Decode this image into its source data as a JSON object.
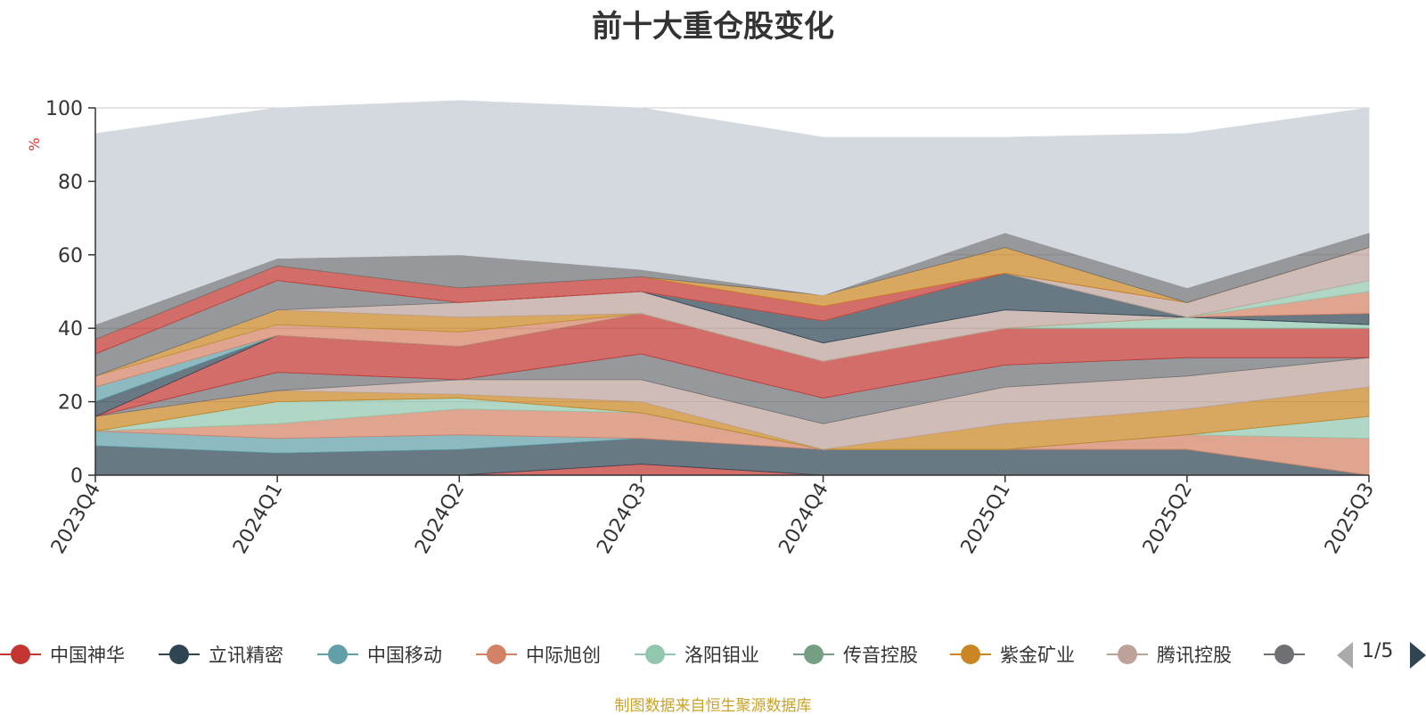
{
  "chart_data": {
    "type": "area",
    "stacked": true,
    "title": "前十大重仓股变化",
    "ylabel": "%",
    "ylim": [
      0,
      100
    ],
    "yticks": [
      0,
      20,
      40,
      60,
      80,
      100
    ],
    "grid": true,
    "categories": [
      "2023Q4",
      "2024Q1",
      "2024Q2",
      "2024Q3",
      "2024Q4",
      "2025Q1",
      "2025Q2",
      "2025Q3"
    ],
    "series": [
      {
        "name": "中国神华",
        "color": "#c23531",
        "values": [
          0,
          0,
          0,
          3,
          0,
          0,
          0,
          0
        ]
      },
      {
        "name": "立讯精密",
        "color": "#2f4554",
        "values": [
          8,
          6,
          7,
          7,
          7,
          7,
          7,
          0
        ]
      },
      {
        "name": "中国移动",
        "color": "#61a0a8",
        "values": [
          4,
          4,
          4,
          0,
          0,
          0,
          0,
          0
        ]
      },
      {
        "name": "中际旭创",
        "color": "#d48265",
        "values": [
          0,
          4,
          7,
          7,
          0,
          0,
          4,
          10
        ]
      },
      {
        "name": "洛阳钼业",
        "color": "#91c7ae",
        "values": [
          0,
          6,
          3,
          0,
          0,
          0,
          0,
          6
        ]
      },
      {
        "name": "传音控股",
        "color": "#749f83",
        "values": [
          0,
          0,
          0,
          0,
          0,
          0,
          0,
          0
        ]
      },
      {
        "name": "紫金矿业",
        "color": "#ca8622",
        "values": [
          4,
          3,
          1,
          3,
          0,
          7,
          7,
          8
        ]
      },
      {
        "name": "腾讯控股",
        "color": "#bda29a",
        "values": [
          0,
          0,
          4,
          6,
          7,
          10,
          9,
          8
        ]
      },
      {
        "name": "",
        "color": "#6e7074",
        "values": [
          0,
          5,
          0,
          7,
          7,
          6,
          5,
          0
        ]
      },
      {
        "name": "",
        "color": "#c23531",
        "values": [
          0,
          10,
          9,
          11,
          10,
          10,
          8,
          8
        ]
      },
      {
        "name": "",
        "color": "#2f4554",
        "values": [
          4,
          0,
          0,
          0,
          0,
          0,
          0,
          0
        ]
      },
      {
        "name": "",
        "color": "#61a0a8",
        "values": [
          4,
          0,
          0,
          0,
          0,
          0,
          0,
          0
        ]
      },
      {
        "name": "",
        "color": "#d48265",
        "values": [
          3,
          3,
          4,
          0,
          0,
          0,
          0,
          0
        ]
      },
      {
        "name": "",
        "color": "#91c7ae",
        "values": [
          0,
          0,
          0,
          0,
          0,
          0,
          3,
          1
        ]
      },
      {
        "name": "",
        "color": "#ca8622",
        "values": [
          0,
          4,
          4,
          0,
          0,
          0,
          0,
          0
        ]
      },
      {
        "name": "",
        "color": "#bda29a",
        "values": [
          0,
          0,
          4,
          6,
          5,
          5,
          0,
          0
        ]
      },
      {
        "name": "",
        "color": "#6e7074",
        "values": [
          6,
          8,
          0,
          0,
          0,
          0,
          0,
          0
        ]
      },
      {
        "name": "",
        "color": "#2f4554",
        "values": [
          0,
          0,
          0,
          0,
          6,
          10,
          0,
          3
        ]
      },
      {
        "name": "",
        "color": "#d48265",
        "values": [
          0,
          0,
          0,
          0,
          0,
          0,
          0,
          6
        ]
      },
      {
        "name": "",
        "color": "#91c7ae",
        "values": [
          0,
          0,
          0,
          0,
          0,
          0,
          0,
          3
        ]
      },
      {
        "name": "",
        "color": "#bda29a",
        "values": [
          0,
          0,
          0,
          0,
          0,
          0,
          4,
          9
        ]
      },
      {
        "name": "",
        "color": "#c23531",
        "values": [
          4,
          4,
          4,
          4,
          4,
          0,
          0,
          0
        ]
      },
      {
        "name": "",
        "color": "#ca8622",
        "values": [
          0,
          0,
          0,
          0,
          3,
          7,
          0,
          0
        ]
      },
      {
        "name": "",
        "color": "#6e7074",
        "values": [
          4,
          2,
          9,
          2,
          0,
          4,
          4,
          4
        ]
      },
      {
        "name": "",
        "color": "#d4d9e0",
        "values": [
          52,
          41,
          42,
          44,
          43,
          26,
          42,
          34
        ]
      }
    ]
  },
  "legend": {
    "items": [
      {
        "label": "中国神华",
        "color": "#c23531"
      },
      {
        "label": "立讯精密",
        "color": "#2f4554"
      },
      {
        "label": "中国移动",
        "color": "#61a0a8"
      },
      {
        "label": "中际旭创",
        "color": "#d48265"
      },
      {
        "label": "洛阳钼业",
        "color": "#91c7ae"
      },
      {
        "label": "传音控股",
        "color": "#749f83"
      },
      {
        "label": "紫金矿业",
        "color": "#ca8622"
      },
      {
        "label": "腾讯控股",
        "color": "#bda29a"
      },
      {
        "label": "",
        "color": "#6e7074"
      }
    ],
    "page_text": "1/5"
  },
  "source_note": "制图数据来自恒生聚源数据库"
}
